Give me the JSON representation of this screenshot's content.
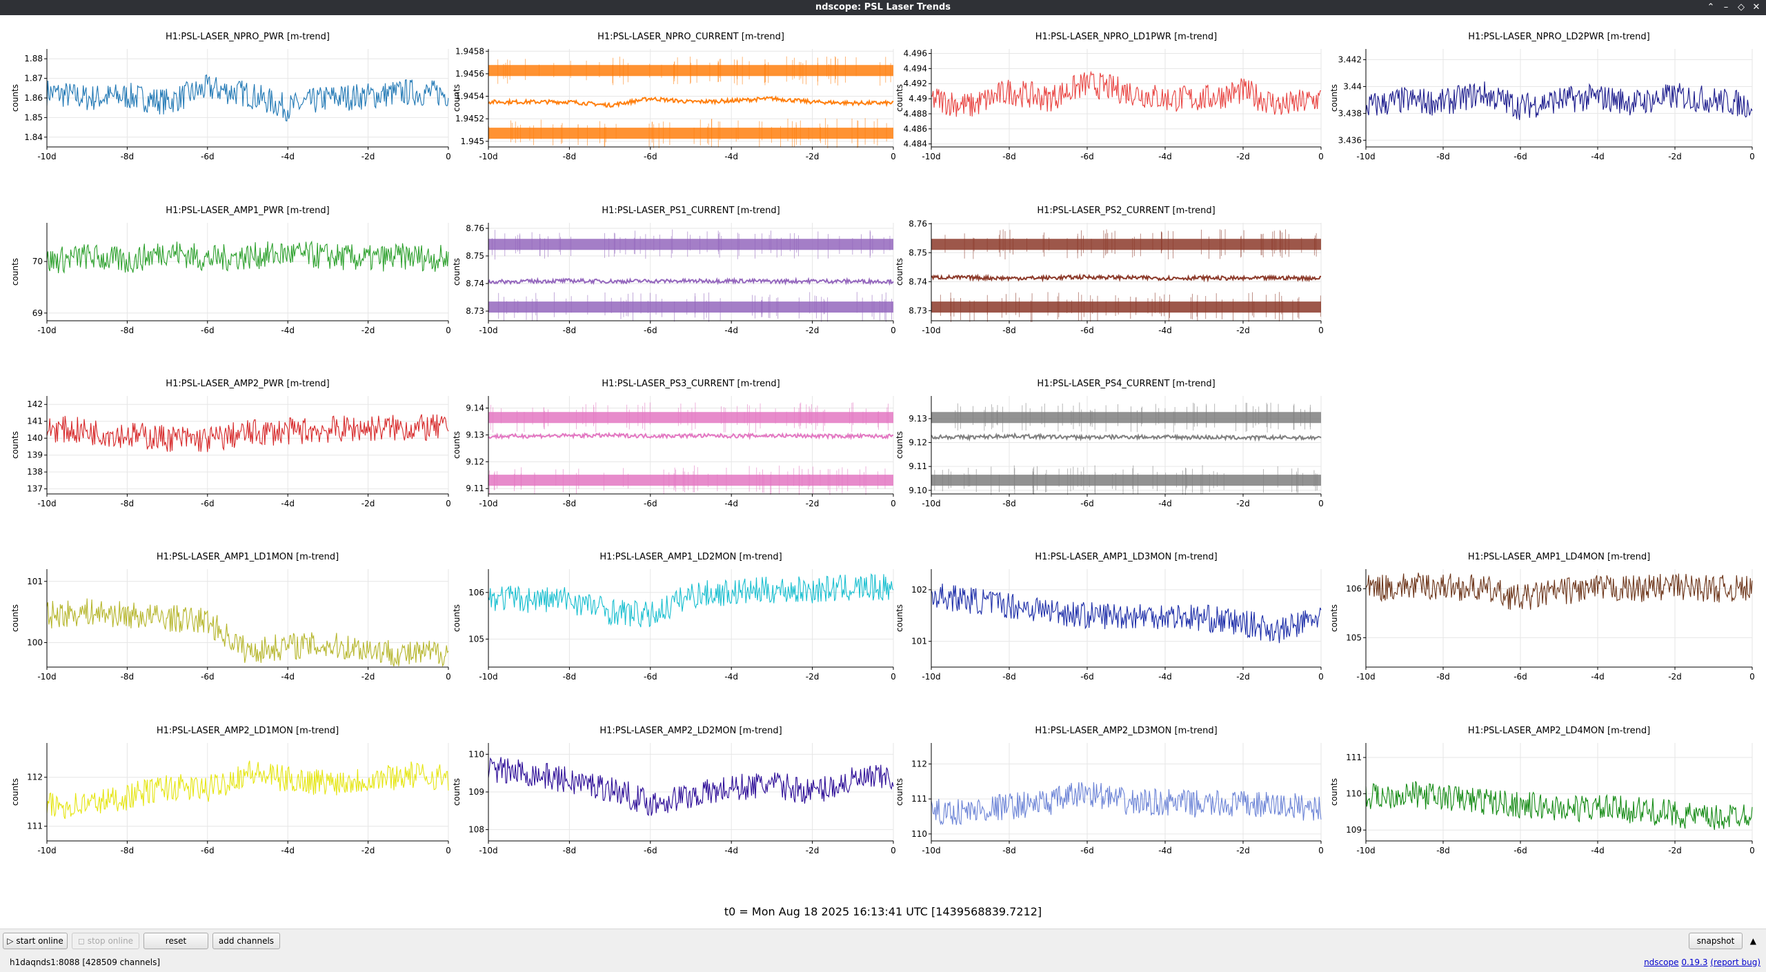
{
  "window": {
    "title": "ndscope: PSL Laser Trends"
  },
  "t0_label": "t0 = Mon Aug 18 2025 16:13:41 UTC [1439568839.7212]",
  "toolbar": {
    "start_online": "start online",
    "stop_online": "stop online",
    "reset": "reset",
    "add_channels": "add channels",
    "snapshot": "snapshot"
  },
  "status": {
    "server": "h1daqnds1:8088  [428509 channels]",
    "app": "ndscope",
    "version": "0.19.3",
    "report_bug": "(report bug)"
  },
  "ylabel": "counts",
  "plots": [
    {
      "row": 0,
      "col": 0,
      "title": "H1:PSL-LASER_NPRO_PWR [m-trend]",
      "color": "#1f77b4",
      "ylim": [
        1.835,
        1.885
      ],
      "yticks": [
        "1.84",
        "1.85",
        "1.86",
        "1.87",
        "1.88"
      ],
      "xticks": [
        "-10d",
        "-8d",
        "-6d",
        "-4d",
        "-2d",
        "0"
      ],
      "style": "trend"
    },
    {
      "row": 0,
      "col": 1,
      "title": "H1:PSL-LASER_NPRO_CURRENT [m-trend]",
      "color": "#ff7f0e",
      "ylim": [
        1.94495,
        1.94582
      ],
      "yticks": [
        "1.945",
        "1.9452",
        "1.9454",
        "1.9456",
        "1.9458"
      ],
      "xticks": [
        "-10d",
        "-8d",
        "-6d",
        "-4d",
        "-2d",
        "0"
      ],
      "style": "bands"
    },
    {
      "row": 0,
      "col": 2,
      "title": "H1:PSL-LASER_NPRO_LD1PWR [m-trend]",
      "color": "#e8423f",
      "ylim": [
        4.4836,
        4.4966
      ],
      "yticks": [
        "4.484",
        "4.486",
        "4.488",
        "4.49",
        "4.492",
        "4.494",
        "4.496"
      ],
      "xticks": [
        "-10d",
        "-8d",
        "-6d",
        "-4d",
        "-2d",
        "0"
      ],
      "style": "trend"
    },
    {
      "row": 0,
      "col": 3,
      "title": "H1:PSL-LASER_NPRO_LD2PWR [m-trend]",
      "color": "#1a1a8c",
      "ylim": [
        3.4355,
        3.4428
      ],
      "yticks": [
        "3.436",
        "3.438",
        "3.44",
        "3.442"
      ],
      "xticks": [
        "-10d",
        "-8d",
        "-6d",
        "-4d",
        "-2d",
        "0"
      ],
      "style": "trend"
    },
    {
      "row": 1,
      "col": 0,
      "title": "H1:PSL-LASER_AMP1_PWR [m-trend]",
      "color": "#2ca02c",
      "ylim": [
        68.85,
        70.75
      ],
      "yticks": [
        "69",
        "70"
      ],
      "xticks": [
        "-10d",
        "-8d",
        "-6d",
        "-4d",
        "-2d",
        "0"
      ],
      "style": "trend"
    },
    {
      "row": 1,
      "col": 1,
      "title": "H1:PSL-LASER_PS1_CURRENT [m-trend]",
      "color": "#9467bd",
      "ylim": [
        8.7265,
        8.762
      ],
      "yticks": [
        "8.73",
        "8.74",
        "8.75",
        "8.76"
      ],
      "xticks": [
        "-10d",
        "-8d",
        "-6d",
        "-4d",
        "-2d",
        "0"
      ],
      "style": "bands"
    },
    {
      "row": 1,
      "col": 2,
      "title": "H1:PSL-LASER_PS2_CURRENT [m-trend]",
      "color": "#8c3a2a",
      "ylim": [
        8.7265,
        8.7603
      ],
      "yticks": [
        "8.73",
        "8.74",
        "8.75",
        "8.76"
      ],
      "xticks": [
        "-10d",
        "-8d",
        "-6d",
        "-4d",
        "-2d",
        "0"
      ],
      "style": "bands"
    },
    {
      "row": 2,
      "col": 0,
      "title": "H1:PSL-LASER_AMP2_PWR [m-trend]",
      "color": "#d62728",
      "ylim": [
        136.7,
        142.5
      ],
      "yticks": [
        "137",
        "138",
        "139",
        "140",
        "141",
        "142"
      ],
      "xticks": [
        "-10d",
        "-8d",
        "-6d",
        "-4d",
        "-2d",
        "0"
      ],
      "style": "trend"
    },
    {
      "row": 2,
      "col": 1,
      "title": "H1:PSL-LASER_PS3_CURRENT [m-trend]",
      "color": "#e377c2",
      "ylim": [
        9.108,
        9.1445
      ],
      "yticks": [
        "9.11",
        "9.12",
        "9.13",
        "9.14"
      ],
      "xticks": [
        "-10d",
        "-8d",
        "-6d",
        "-4d",
        "-2d",
        "0"
      ],
      "style": "bands"
    },
    {
      "row": 2,
      "col": 2,
      "title": "H1:PSL-LASER_PS4_CURRENT [m-trend]",
      "color": "#7f7f7f",
      "ylim": [
        9.0985,
        9.1395
      ],
      "yticks": [
        "9.10",
        "9.11",
        "9.12",
        "9.13"
      ],
      "xticks": [
        "-10d",
        "-8d",
        "-6d",
        "-4d",
        "-2d",
        "0"
      ],
      "style": "bands"
    },
    {
      "row": 3,
      "col": 0,
      "title": "H1:PSL-LASER_AMP1_LD1MON [m-trend]",
      "color": "#b5b52a",
      "ylim": [
        99.6,
        101.2
      ],
      "yticks": [
        "100",
        "101"
      ],
      "xticks": [
        "-10d",
        "-8d",
        "-6d",
        "-4d",
        "-2d",
        "0"
      ],
      "style": "trend"
    },
    {
      "row": 3,
      "col": 1,
      "title": "H1:PSL-LASER_AMP1_LD2MON [m-trend]",
      "color": "#17becf",
      "ylim": [
        104.4,
        106.5
      ],
      "yticks": [
        "105",
        "106"
      ],
      "xticks": [
        "-10d",
        "-8d",
        "-6d",
        "-4d",
        "-2d",
        "0"
      ],
      "style": "trend"
    },
    {
      "row": 3,
      "col": 2,
      "title": "H1:PSL-LASER_AMP1_LD3MON [m-trend]",
      "color": "#1c2da8",
      "ylim": [
        100.5,
        102.4
      ],
      "yticks": [
        "101",
        "102"
      ],
      "xticks": [
        "-10d",
        "-8d",
        "-6d",
        "-4d",
        "-2d",
        "0"
      ],
      "style": "trend"
    },
    {
      "row": 3,
      "col": 3,
      "title": "H1:PSL-LASER_AMP1_LD4MON [m-trend]",
      "color": "#6b3317",
      "ylim": [
        104.4,
        106.4
      ],
      "yticks": [
        "105",
        "106"
      ],
      "xticks": [
        "-10d",
        "-8d",
        "-6d",
        "-4d",
        "-2d",
        "0"
      ],
      "style": "trend"
    },
    {
      "row": 4,
      "col": 0,
      "title": "H1:PSL-LASER_AMP2_LD1MON [m-trend]",
      "color": "#e5e510",
      "ylim": [
        110.7,
        112.7
      ],
      "yticks": [
        "111",
        "112"
      ],
      "xticks": [
        "-10d",
        "-8d",
        "-6d",
        "-4d",
        "-2d",
        "0"
      ],
      "style": "trend"
    },
    {
      "row": 4,
      "col": 1,
      "title": "H1:PSL-LASER_AMP2_LD2MON [m-trend]",
      "color": "#2a0a96",
      "ylim": [
        107.7,
        110.3
      ],
      "yticks": [
        "108",
        "109",
        "110"
      ],
      "xticks": [
        "-10d",
        "-8d",
        "-6d",
        "-4d",
        "-2d",
        "0"
      ],
      "style": "trend"
    },
    {
      "row": 4,
      "col": 2,
      "title": "H1:PSL-LASER_AMP2_LD3MON [m-trend]",
      "color": "#6b83d6",
      "ylim": [
        109.8,
        112.6
      ],
      "yticks": [
        "110",
        "111",
        "112"
      ],
      "xticks": [
        "-10d",
        "-8d",
        "-6d",
        "-4d",
        "-2d",
        "0"
      ],
      "style": "trend"
    },
    {
      "row": 4,
      "col": 3,
      "title": "H1:PSL-LASER_AMP2_LD4MON [m-trend]",
      "color": "#138a13",
      "ylim": [
        108.7,
        111.4
      ],
      "yticks": [
        "109",
        "110",
        "111"
      ],
      "xticks": [
        "-10d",
        "-8d",
        "-6d",
        "-4d",
        "-2d",
        "0"
      ],
      "style": "trend"
    }
  ],
  "chart_data": [
    {
      "type": "line",
      "title": "H1:PSL-LASER_NPRO_PWR [m-trend]",
      "ylabel": "counts",
      "x_range_days": [
        -10,
        0
      ],
      "ylim": [
        1.835,
        1.885
      ],
      "series": [
        {
          "values_approx": [
            1.863,
            1.86,
            1.861,
            1.858,
            1.865,
            1.862,
            1.855,
            1.86,
            1.861,
            1.863,
            1.862
          ]
        }
      ]
    },
    {
      "type": "line",
      "title": "H1:PSL-LASER_NPRO_CURRENT [m-trend]",
      "ylabel": "counts",
      "x_range_days": [
        -10,
        0
      ],
      "ylim": [
        1.94495,
        1.94582
      ],
      "series": [
        {
          "values_approx": [
            1.94535,
            1.94535,
            1.94535,
            1.94532,
            1.94538,
            1.94535,
            1.94536,
            1.94538,
            1.94535,
            1.94534,
            1.94534
          ]
        }
      ]
    },
    {
      "type": "line",
      "title": "H1:PSL-LASER_NPRO_LD1PWR [m-trend]",
      "ylabel": "counts",
      "x_range_days": [
        -10,
        0
      ],
      "ylim": [
        4.4836,
        4.4966
      ],
      "series": [
        {
          "values_approx": [
            4.49,
            4.489,
            4.491,
            4.49,
            4.492,
            4.491,
            4.49,
            4.49,
            4.491,
            4.489,
            4.49
          ]
        }
      ]
    },
    {
      "type": "line",
      "title": "H1:PSL-LASER_NPRO_LD2PWR [m-trend]",
      "ylabel": "counts",
      "x_range_days": [
        -10,
        0
      ],
      "ylim": [
        3.4355,
        3.4428
      ],
      "series": [
        {
          "values_approx": [
            3.4385,
            3.439,
            3.4388,
            3.4395,
            3.4385,
            3.439,
            3.4392,
            3.4388,
            3.4393,
            3.439,
            3.4386
          ]
        }
      ]
    },
    {
      "type": "line",
      "title": "H1:PSL-LASER_AMP1_PWR [m-trend]",
      "ylabel": "counts",
      "x_range_days": [
        -10,
        0
      ],
      "ylim": [
        68.85,
        70.75
      ],
      "series": [
        {
          "values_approx": [
            70.0,
            70.1,
            70.0,
            70.2,
            70.05,
            70.1,
            70.15,
            70.1,
            70.05,
            70.1,
            70.05
          ]
        }
      ]
    },
    {
      "type": "line",
      "title": "H1:PSL-LASER_PS1_CURRENT [m-trend]",
      "ylabel": "counts",
      "x_range_days": [
        -10,
        0
      ],
      "ylim": [
        8.7265,
        8.762
      ],
      "series": [
        {
          "values_approx": [
            8.7406,
            8.7408,
            8.741,
            8.7408,
            8.7409,
            8.7409,
            8.741,
            8.7408,
            8.7409,
            8.7408,
            8.7408
          ]
        }
      ]
    },
    {
      "type": "line",
      "title": "H1:PSL-LASER_PS2_CURRENT [m-trend]",
      "ylabel": "counts",
      "x_range_days": [
        -10,
        0
      ],
      "ylim": [
        8.7265,
        8.7603
      ],
      "series": [
        {
          "values_approx": [
            8.7415,
            8.7414,
            8.7412,
            8.7413,
            8.7416,
            8.7414,
            8.7412,
            8.7413,
            8.7411,
            8.7413,
            8.7412
          ]
        }
      ]
    },
    {
      "type": "line",
      "title": "H1:PSL-LASER_AMP2_PWR [m-trend]",
      "ylabel": "counts",
      "x_range_days": [
        -10,
        0
      ],
      "ylim": [
        136.7,
        142.5
      ],
      "series": [
        {
          "values_approx": [
            140.6,
            140.4,
            140.2,
            140.0,
            139.9,
            140.3,
            140.4,
            140.5,
            140.6,
            140.6,
            140.6
          ]
        }
      ]
    },
    {
      "type": "line",
      "title": "H1:PSL-LASER_PS3_CURRENT [m-trend]",
      "ylabel": "counts",
      "x_range_days": [
        -10,
        0
      ],
      "ylim": [
        9.108,
        9.1445
      ],
      "series": [
        {
          "values_approx": [
            9.1294,
            9.1296,
            9.1297,
            9.1298,
            9.1296,
            9.1297,
            9.1296,
            9.1297,
            9.1296,
            9.1295,
            9.1295
          ]
        }
      ]
    },
    {
      "type": "line",
      "title": "H1:PSL-LASER_PS4_CURRENT [m-trend]",
      "ylabel": "counts",
      "x_range_days": [
        -10,
        0
      ],
      "ylim": [
        9.0985,
        9.1395
      ],
      "series": [
        {
          "values_approx": [
            9.1225,
            9.1222,
            9.1228,
            9.1224,
            9.1222,
            9.1224,
            9.1223,
            9.1222,
            9.122,
            9.1221,
            9.122
          ]
        }
      ]
    },
    {
      "type": "line",
      "title": "H1:PSL-LASER_AMP1_LD1MON [m-trend]",
      "ylabel": "counts",
      "x_range_days": [
        -10,
        0
      ],
      "ylim": [
        99.6,
        101.2
      ],
      "series": [
        {
          "values_approx": [
            100.45,
            100.5,
            100.45,
            100.4,
            100.35,
            99.85,
            99.95,
            99.95,
            99.9,
            99.8,
            99.85
          ]
        }
      ]
    },
    {
      "type": "line",
      "title": "H1:PSL-LASER_AMP1_LD2MON [m-trend]",
      "ylabel": "counts",
      "x_range_days": [
        -10,
        0
      ],
      "ylim": [
        104.4,
        106.5
      ],
      "series": [
        {
          "values_approx": [
            105.9,
            105.85,
            105.85,
            105.6,
            105.5,
            105.95,
            106.0,
            106.05,
            106.05,
            106.1,
            106.1
          ]
        }
      ]
    },
    {
      "type": "line",
      "title": "H1:PSL-LASER_AMP1_LD3MON [m-trend]",
      "ylabel": "counts",
      "x_range_days": [
        -10,
        0
      ],
      "ylim": [
        100.5,
        102.4
      ],
      "series": [
        {
          "values_approx": [
            101.9,
            101.8,
            101.7,
            101.6,
            101.5,
            101.5,
            101.5,
            101.45,
            101.35,
            101.2,
            101.5
          ]
        }
      ]
    },
    {
      "type": "line",
      "title": "H1:PSL-LASER_AMP1_LD4MON [m-trend]",
      "ylabel": "counts",
      "x_range_days": [
        -10,
        0
      ],
      "ylim": [
        104.4,
        106.4
      ],
      "series": [
        {
          "values_approx": [
            106.0,
            106.05,
            106.05,
            106.0,
            105.8,
            105.95,
            106.0,
            106.0,
            106.05,
            106.0,
            106.0
          ]
        }
      ]
    },
    {
      "type": "line",
      "title": "H1:PSL-LASER_AMP2_LD1MON [m-trend]",
      "ylabel": "counts",
      "x_range_days": [
        -10,
        0
      ],
      "ylim": [
        110.7,
        112.7
      ],
      "series": [
        {
          "values_approx": [
            111.4,
            111.45,
            111.6,
            111.8,
            111.75,
            112.1,
            111.95,
            111.9,
            111.95,
            112.05,
            112.0
          ]
        }
      ]
    },
    {
      "type": "line",
      "title": "H1:PSL-LASER_AMP2_LD2MON [m-trend]",
      "ylabel": "counts",
      "x_range_days": [
        -10,
        0
      ],
      "ylim": [
        107.7,
        110.3
      ],
      "series": [
        {
          "values_approx": [
            109.6,
            109.5,
            109.3,
            109.1,
            108.7,
            108.9,
            109.1,
            109.2,
            109.0,
            109.3,
            109.4
          ]
        }
      ]
    },
    {
      "type": "line",
      "title": "H1:PSL-LASER_AMP2_LD3MON [m-trend]",
      "ylabel": "counts",
      "x_range_days": [
        -10,
        0
      ],
      "ylim": [
        109.8,
        112.6
      ],
      "series": [
        {
          "values_approx": [
            110.6,
            110.65,
            110.8,
            110.9,
            111.2,
            110.9,
            110.9,
            110.85,
            110.85,
            110.8,
            110.75
          ]
        }
      ]
    },
    {
      "type": "line",
      "title": "H1:PSL-LASER_AMP2_LD4MON [m-trend]",
      "ylabel": "counts",
      "x_range_days": [
        -10,
        0
      ],
      "ylim": [
        108.7,
        111.4
      ],
      "series": [
        {
          "values_approx": [
            109.9,
            110.0,
            109.9,
            109.8,
            109.7,
            109.6,
            109.6,
            109.55,
            109.45,
            109.3,
            109.5
          ]
        }
      ]
    }
  ]
}
